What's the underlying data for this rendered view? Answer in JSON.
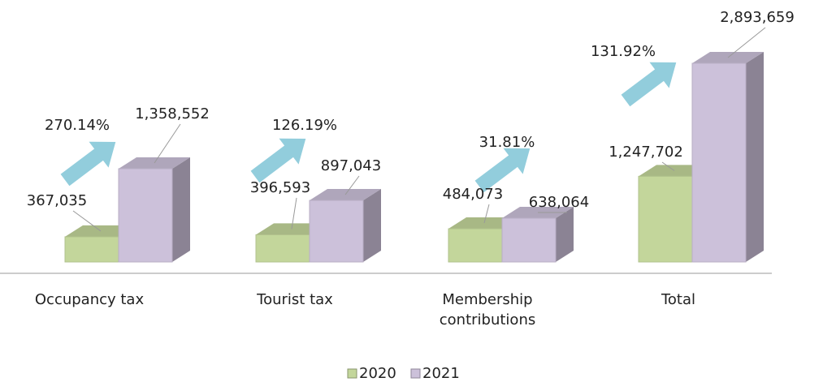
{
  "chart_data": {
    "type": "bar3d",
    "categories": [
      "Occupancy tax",
      "Tourist tax",
      "Membership contributions",
      "Total"
    ],
    "series": [
      {
        "name": "2020",
        "color": "#c3d69b",
        "values": [
          367035,
          396593,
          484073,
          1247702
        ],
        "value_labels": [
          "367,035",
          "396,593",
          "484,073",
          "1,247,702"
        ]
      },
      {
        "name": "2021",
        "color": "#ccc1da",
        "values": [
          1358552,
          897043,
          638064,
          2893659
        ],
        "value_labels": [
          "1,358,552",
          "897,043",
          "638,064",
          "2,893,659"
        ]
      }
    ],
    "annotations": [
      "270.14%",
      "126.19%",
      "31.81%",
      "131.92%"
    ],
    "legend": "bottom"
  }
}
